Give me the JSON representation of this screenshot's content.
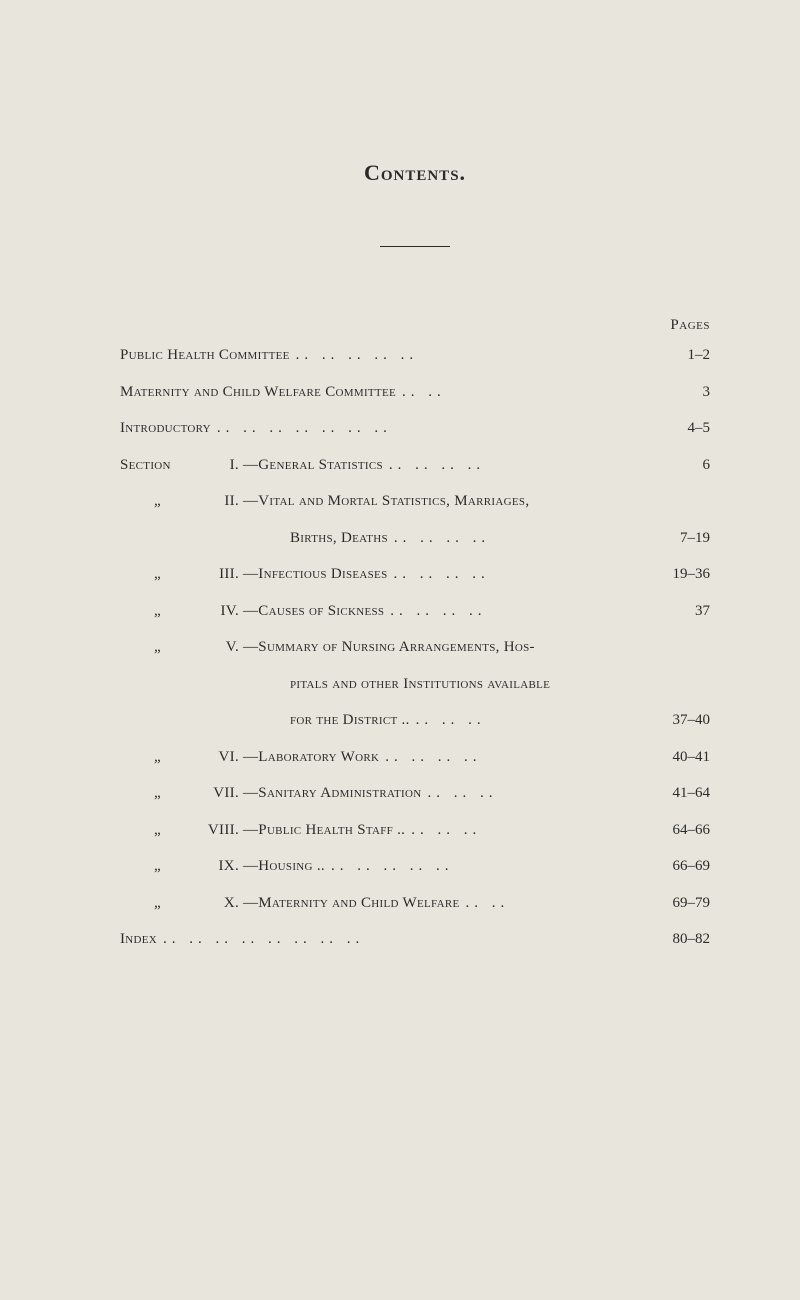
{
  "title": "Contents.",
  "pagesLabel": "Pages",
  "dotsFill": ". . . . . . . . . . . . . . . . . . . .",
  "entries": [
    {
      "label": "Public Health Committee",
      "dots": ".. .. .. .. ..",
      "page": "1–2",
      "indent": 0
    },
    {
      "label": "Maternity and Child Welfare Committee",
      "dots": ".. ..",
      "page": "3",
      "indent": 0
    },
    {
      "label": "Introductory",
      "dots": ".. .. .. .. .. .. ..",
      "page": "4–5",
      "indent": 0
    },
    {
      "prefix": "Section",
      "roman": "I.",
      "label": "—General Statistics",
      "dots": ".. .. .. ..",
      "page": "6",
      "indent": 0
    },
    {
      "ditto": "„",
      "roman": "II.",
      "label": "—Vital and Mortal Statistics, Marriages,",
      "indent": 0,
      "noPage": true
    },
    {
      "continuation": "Births, Deaths",
      "dots": ".. .. .. ..",
      "page": "7–19"
    },
    {
      "ditto": "„",
      "roman": "III.",
      "label": "—Infectious Diseases",
      "dots": ".. .. .. ..",
      "page": "19–36",
      "indent": 0
    },
    {
      "ditto": "„",
      "roman": "IV.",
      "label": "—Causes of Sickness",
      "dots": ".. .. .. ..",
      "page": "37",
      "indent": 0
    },
    {
      "ditto": "„",
      "roman": "V.",
      "label": "—Summary of Nursing Arrangements, Hos-",
      "indent": 0,
      "noPage": true
    },
    {
      "continuation": "pitals and other Institutions available",
      "noPage": true
    },
    {
      "continuation": "for the District ..",
      "dots": ".. .. ..",
      "page": "37–40"
    },
    {
      "ditto": "„",
      "roman": "VI.",
      "label": "—Laboratory Work",
      "dots": ".. .. .. ..",
      "page": "40–41",
      "indent": 0
    },
    {
      "ditto": "„",
      "roman": "VII.",
      "label": "—Sanitary Administration",
      "dots": ".. .. ..",
      "page": "41–64",
      "indent": 0
    },
    {
      "ditto": "„",
      "roman": "VIII.",
      "label": "—Public Health Staff ..",
      "dots": ".. .. ..",
      "page": "64–66",
      "indent": 0
    },
    {
      "ditto": "„",
      "roman": "IX.",
      "label": "—Housing ..",
      "dots": ".. .. .. .. ..",
      "page": "66–69",
      "indent": 0
    },
    {
      "ditto": "„",
      "roman": "X.",
      "label": "—Maternity and Child Welfare",
      "dots": ".. ..",
      "page": "69–79",
      "indent": 0
    },
    {
      "label": "Index",
      "dots": ".. .. .. .. .. .. .. ..",
      "page": "80–82",
      "indent": 0
    }
  ]
}
